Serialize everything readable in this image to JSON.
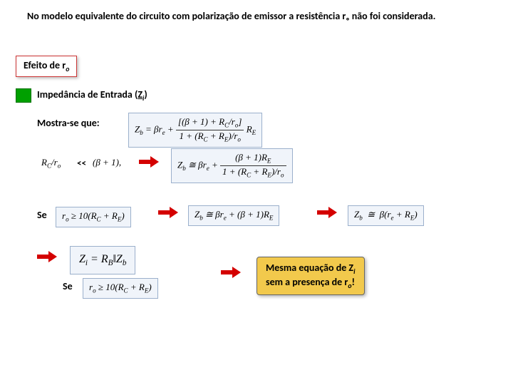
{
  "intro": "No modelo equivalente do circuito com polarização de emissor a resistência rₒ não foi considerada.",
  "section_label_html": "Efeito de r<sub>o</sub>",
  "subsection_html": "Impedância de Entrada (<span class='underline'>Z<sub>i</sub></span>)",
  "mostra": "Mostra-se que:",
  "lt": "<<",
  "se": "Se",
  "callout_html": "Mesma equação de Z<sub>i</sub><br>sem a presença de r<sub>o</sub>!",
  "formulas": {
    "zb_main_html": "Z<sub>b</sub> = βr<sub>e</sub> + <span class='frac'><span class='num'>[(β + 1) + R<sub>C</sub>/r<sub>o</sub>]</span><span class='den'>1 + (R<sub>C</sub> + R<sub>E</sub>)/r<sub>o</sub></span></span> R<sub>E</sub>",
    "rcr_html": "R<sub>C</sub>/r<sub>o</sub>",
    "bp1_html": "(β + 1),",
    "zb2_html": "Z<sub>b</sub> ≅ βr<sub>e</sub> + <span class='frac'><span class='num'>(β + 1)R<sub>E</sub></span><span class='den'>1 + (R<sub>C</sub> + R<sub>E</sub>)/r<sub>o</sub></span></span>",
    "cond1_html": "r<sub>o</sub> ≥ 10(R<sub>C</sub> + R<sub>E</sub>)",
    "zb3_html": "Z<sub>b</sub> ≅ βr<sub>e</sub> + (β + 1)R<sub>E</sub>",
    "zb4_html": "Z<sub>b</sub> &nbsp;≅&nbsp; β(r<sub>e</sub> + R<sub>E</sub>)",
    "zi_html": "Z<sub>i</sub> = R<sub>B</sub>‖Z<sub>b</sub>",
    "cond2_html": "r<sub>o</sub> ≥ 10(R<sub>C</sub> + R<sub>E</sub>)"
  },
  "colors": {
    "border_red": "#cc3333",
    "arrow_red": "#d40000",
    "green": "#00a000",
    "formula_bg": "#f0f4fa",
    "formula_border": "#9bb0cc",
    "callout_bg": "#f2c94c"
  }
}
